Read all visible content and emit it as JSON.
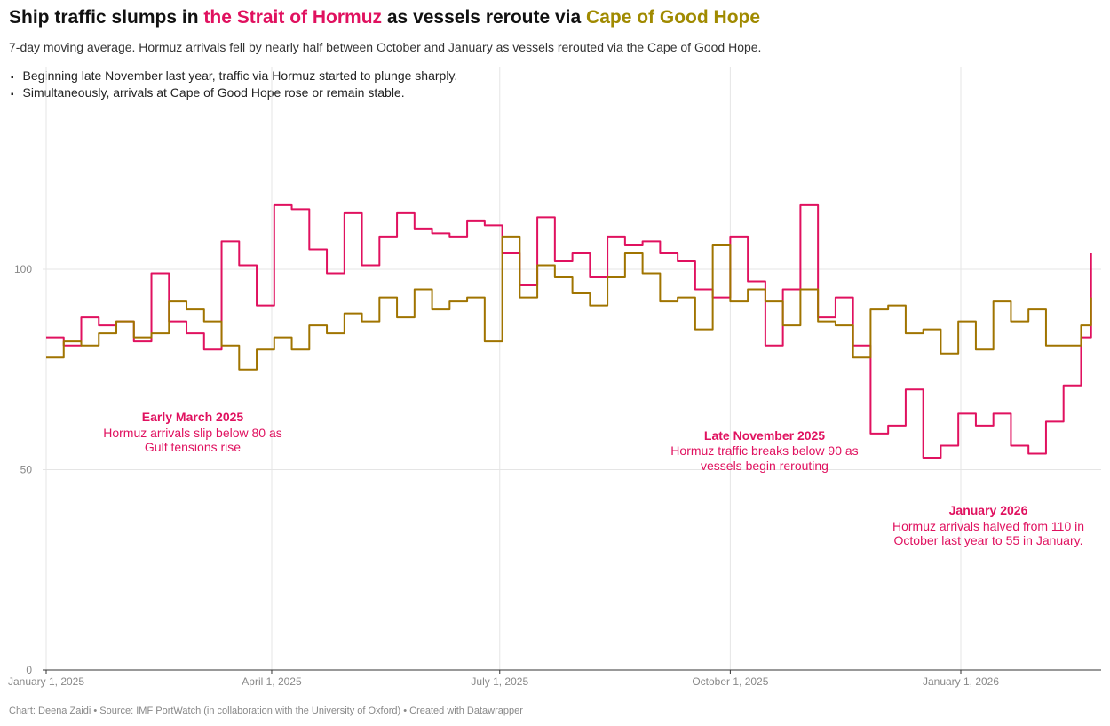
{
  "title": {
    "pre": "Ship traffic slumps in ",
    "hormuz": "the Strait of Hormuz",
    "mid": " as vessels reroute via ",
    "cape": "Cape of Good Hope"
  },
  "subtitle": "7-day moving average. Hormuz arrivals fell by nearly half between October and January as vessels rerouted via the Cape of Good Hope.",
  "bullets": [
    "Beginning late November last year, traffic via Hormuz started to plunge sharply.",
    "Simultaneously, arrivals at Cape of Good Hope rose or remain stable."
  ],
  "footer": "Chart: Deena Zaidi • Source: IMF PortWatch (in collaboration with the University of Oxford) • Created with Datawrapper",
  "chart_data": {
    "type": "line",
    "ylim": [
      0,
      120
    ],
    "yticks": [
      "0",
      "50",
      "100"
    ],
    "ytick_values": [
      0,
      50,
      100
    ],
    "xticks": [
      "January 1, 2025",
      "April 1, 2025",
      "July 1, 2025",
      "October 1, 2025",
      "January 1, 2026"
    ],
    "xtick_values": [
      "2025-01-01",
      "2025-04-01",
      "2025-07-01",
      "2025-10-01",
      "2026-01-01"
    ],
    "xlim": [
      "2025-01-01",
      "2026-02-22"
    ],
    "grid": true,
    "x": [
      "2025-01-01",
      "2025-01-08",
      "2025-01-15",
      "2025-01-22",
      "2025-01-29",
      "2025-02-05",
      "2025-02-12",
      "2025-02-19",
      "2025-02-26",
      "2025-03-05",
      "2025-03-12",
      "2025-03-19",
      "2025-03-26",
      "2025-04-02",
      "2025-04-09",
      "2025-04-16",
      "2025-04-23",
      "2025-04-30",
      "2025-05-07",
      "2025-05-14",
      "2025-05-21",
      "2025-05-28",
      "2025-06-04",
      "2025-06-11",
      "2025-06-18",
      "2025-06-25",
      "2025-07-02",
      "2025-07-09",
      "2025-07-16",
      "2025-07-23",
      "2025-07-30",
      "2025-08-06",
      "2025-08-13",
      "2025-08-20",
      "2025-08-27",
      "2025-09-03",
      "2025-09-10",
      "2025-09-17",
      "2025-09-24",
      "2025-10-01",
      "2025-10-08",
      "2025-10-15",
      "2025-10-22",
      "2025-10-29",
      "2025-11-05",
      "2025-11-12",
      "2025-11-19",
      "2025-11-26",
      "2025-12-03",
      "2025-12-10",
      "2025-12-17",
      "2025-12-24",
      "2025-12-31",
      "2026-01-07",
      "2026-01-14",
      "2026-01-21",
      "2026-01-28",
      "2026-02-04",
      "2026-02-11",
      "2026-02-18",
      "2026-02-22"
    ],
    "series": [
      {
        "key": "hormuz",
        "color": "#e0115f",
        "values": [
          83,
          81,
          88,
          86,
          87,
          82,
          99,
          87,
          84,
          80,
          107,
          101,
          91,
          116,
          115,
          105,
          99,
          114,
          101,
          108,
          114,
          110,
          109,
          108,
          112,
          111,
          104,
          96,
          113,
          102,
          104,
          98,
          108,
          106,
          107,
          104,
          102,
          95,
          93,
          108,
          97,
          81,
          95,
          116,
          88,
          93,
          81,
          59,
          61,
          70,
          53,
          56,
          64,
          61,
          64,
          56,
          54,
          62,
          71,
          83,
          104
        ]
      },
      {
        "key": "cape",
        "color": "#a07400",
        "values": [
          78,
          82,
          81,
          84,
          87,
          83,
          84,
          92,
          90,
          87,
          81,
          75,
          80,
          83,
          80,
          86,
          84,
          89,
          87,
          93,
          88,
          95,
          90,
          92,
          93,
          82,
          108,
          93,
          101,
          98,
          94,
          91,
          98,
          104,
          99,
          92,
          93,
          85,
          106,
          92,
          95,
          92,
          86,
          95,
          87,
          86,
          78,
          90,
          91,
          84,
          85,
          79,
          87,
          80,
          92,
          87,
          90,
          81,
          81,
          86,
          93
        ]
      }
    ],
    "annotations": [
      {
        "title": "Early March 2025",
        "lines": [
          "Hormuz arrivals slip below 80 as",
          "Gulf tensions rise"
        ]
      },
      {
        "title": "Late November 2025",
        "lines": [
          "Hormuz traffic breaks below 90 as",
          "vessels begin rerouting"
        ]
      },
      {
        "title": "January 2026",
        "lines": [
          "Hormuz arrivals halved from 110 in",
          "October last year to 55 in January."
        ]
      }
    ]
  }
}
